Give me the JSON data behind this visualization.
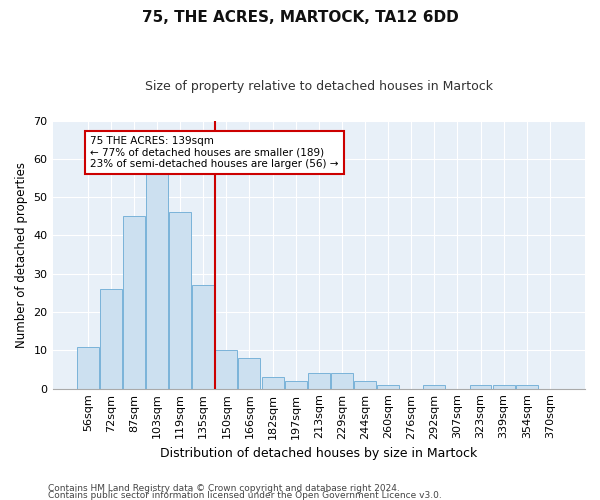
{
  "title1": "75, THE ACRES, MARTOCK, TA12 6DD",
  "title2": "Size of property relative to detached houses in Martock",
  "xlabel": "Distribution of detached houses by size in Martock",
  "ylabel": "Number of detached properties",
  "categories": [
    "56sqm",
    "72sqm",
    "87sqm",
    "103sqm",
    "119sqm",
    "135sqm",
    "150sqm",
    "166sqm",
    "182sqm",
    "197sqm",
    "213sqm",
    "229sqm",
    "244sqm",
    "260sqm",
    "276sqm",
    "292sqm",
    "307sqm",
    "323sqm",
    "339sqm",
    "354sqm",
    "370sqm"
  ],
  "values": [
    11,
    26,
    45,
    57,
    46,
    27,
    10,
    8,
    3,
    2,
    4,
    4,
    2,
    1,
    0,
    1,
    0,
    1,
    1,
    1,
    0
  ],
  "bar_color": "#cce0f0",
  "bar_edge_color": "#7ab3d9",
  "red_line_index": 5.5,
  "annotation_text": "75 THE ACRES: 139sqm\n← 77% of detached houses are smaller (189)\n23% of semi-detached houses are larger (56) →",
  "annotation_box_facecolor": "#ffffff",
  "annotation_box_edgecolor": "#cc0000",
  "ylim": [
    0,
    70
  ],
  "yticks": [
    0,
    10,
    20,
    30,
    40,
    50,
    60,
    70
  ],
  "footer1": "Contains HM Land Registry data © Crown copyright and database right 2024.",
  "footer2": "Contains public sector information licensed under the Open Government Licence v3.0.",
  "plot_bg_color": "#e8f0f8",
  "red_line_color": "#cc0000",
  "grid_color": "#ffffff",
  "title1_fontsize": 11,
  "title2_fontsize": 9,
  "ylabel_fontsize": 8.5,
  "xlabel_fontsize": 9,
  "tick_fontsize": 8,
  "annotation_fontsize": 7.5,
  "footer_fontsize": 6.5
}
